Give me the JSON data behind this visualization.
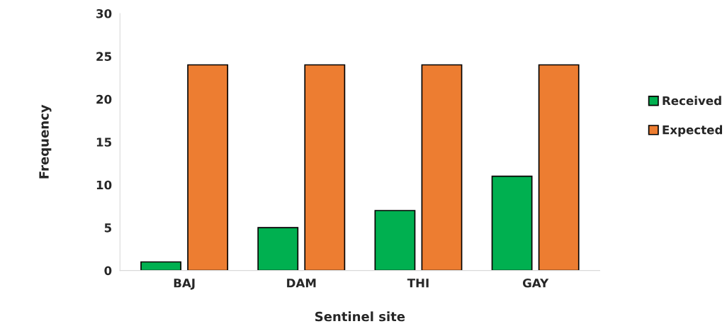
{
  "chart_data": {
    "type": "bar",
    "xlabel": "Sentinel site",
    "ylabel": "Frequency",
    "categories": [
      "BAJ",
      "DAM",
      "THI",
      "GAY"
    ],
    "series": [
      {
        "name": "Received",
        "color": "#00b050",
        "values": [
          1,
          5,
          7,
          11
        ]
      },
      {
        "name": "Expected",
        "color": "#ed7d31",
        "values": [
          24,
          24,
          24,
          24
        ]
      }
    ],
    "ylim": [
      0,
      30
    ],
    "yticks": [
      0,
      5,
      10,
      15,
      20,
      25,
      30
    ],
    "grid": false,
    "legend": "right"
  }
}
